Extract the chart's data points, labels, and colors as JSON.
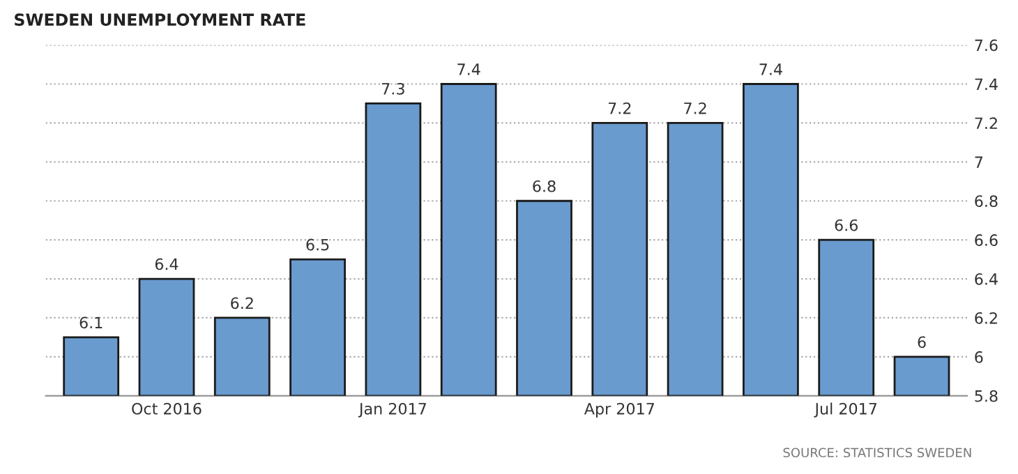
{
  "chart_data": {
    "type": "bar",
    "title": "SWEDEN UNEMPLOYMENT RATE",
    "categories": [
      null,
      "Oct 2016",
      null,
      null,
      "Jan 2017",
      null,
      null,
      "Apr 2017",
      null,
      null,
      "Jul 2017",
      null
    ],
    "values": [
      6.1,
      6.4,
      6.2,
      6.5,
      7.3,
      7.4,
      6.8,
      7.2,
      7.2,
      7.4,
      6.6,
      6
    ],
    "color": "#6a9bcf",
    "ylim": [
      5.8,
      7.6
    ],
    "yticks": [
      5.8,
      6,
      6.2,
      6.4,
      6.6,
      6.8,
      7,
      7.2,
      7.4,
      7.6
    ],
    "grid": "y",
    "data_labels": true,
    "annotations": [
      "SOURCE: STATISTICS SWEDEN"
    ]
  }
}
